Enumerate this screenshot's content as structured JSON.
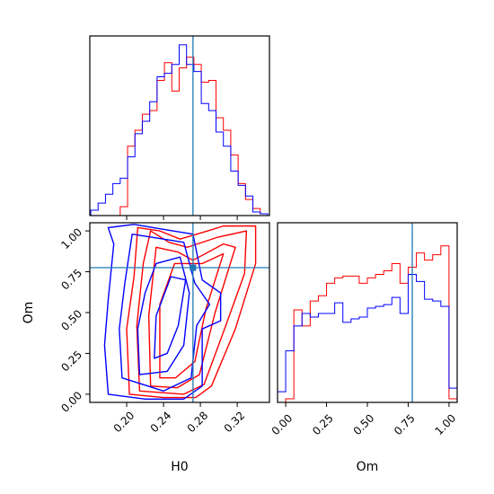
{
  "colors": {
    "series_a": "#ff0000",
    "series_b": "#0000ff",
    "truth": "#1f77b4"
  },
  "chart_data": {
    "type": "corner",
    "parameters": [
      "H0",
      "Om"
    ],
    "truth": {
      "H0": 0.272,
      "Om": 0.775
    },
    "panels": [
      {
        "id": "hist-H0",
        "type": "histogram",
        "parameter": "H0",
        "xlim": [
          0.16,
          0.355
        ],
        "xticks": [
          0.2,
          0.24,
          0.28,
          0.32
        ],
        "tick_labels_shown": false,
        "bins": [
          0.161,
          0.169,
          0.177,
          0.185,
          0.193,
          0.201,
          0.209,
          0.217,
          0.225,
          0.233,
          0.241,
          0.249,
          0.257,
          0.265,
          0.273,
          0.281,
          0.289,
          0.297,
          0.305,
          0.313,
          0.321,
          0.329,
          0.337,
          0.345,
          0.353
        ],
        "series": [
          {
            "name": "",
            "color_key": "series_a",
            "counts": [
              0,
              0,
              0,
              0,
              0.05,
              0.39,
              0.48,
              0.57,
              0.59,
              0.76,
              0.86,
              0.7,
              0.83,
              0.89,
              0.85,
              0.75,
              0.76,
              0.55,
              0.48,
              0.34,
              0.18,
              0.09,
              0.04,
              0.01
            ]
          },
          {
            "name": "",
            "color_key": "series_b",
            "counts": [
              0.03,
              0.07,
              0.12,
              0.18,
              0.21,
              0.33,
              0.46,
              0.53,
              0.64,
              0.78,
              0.8,
              0.85,
              0.96,
              0.85,
              0.81,
              0.63,
              0.59,
              0.47,
              0.39,
              0.25,
              0.17,
              0.11,
              0.02,
              0.01
            ]
          }
        ]
      },
      {
        "id": "hist-Om",
        "type": "histogram",
        "parameter": "Om",
        "xlim": [
          -0.05,
          1.05
        ],
        "xticks": [
          0.0,
          0.25,
          0.5,
          0.75,
          1.0
        ],
        "xtick_labels": [
          "0.00",
          "0.25",
          "0.50",
          "0.75",
          "1.00"
        ],
        "xlabel": "Om",
        "bins": [
          -0.05,
          0.0,
          0.05,
          0.1,
          0.15,
          0.2,
          0.25,
          0.3,
          0.35,
          0.4,
          0.45,
          0.5,
          0.55,
          0.6,
          0.65,
          0.7,
          0.75,
          0.8,
          0.85,
          0.9,
          0.95,
          1.0,
          1.05
        ],
        "series": [
          {
            "name": "",
            "color_key": "series_a",
            "counts": [
              0,
              0.02,
              0.52,
              0.43,
              0.57,
              0.6,
              0.67,
              0.7,
              0.71,
              0.71,
              0.67,
              0.7,
              0.72,
              0.74,
              0.78,
              0.67,
              0.76,
              0.84,
              0.8,
              0.83,
              0.88,
              0.02
            ]
          },
          {
            "name": "",
            "color_key": "series_b",
            "counts": [
              0.06,
              0.29,
              0.43,
              0.5,
              0.48,
              0.5,
              0.5,
              0.56,
              0.45,
              0.47,
              0.48,
              0.53,
              0.54,
              0.55,
              0.59,
              0.5,
              0.72,
              0.68,
              0.58,
              0.57,
              0.54,
              0.08
            ]
          }
        ]
      },
      {
        "id": "contour-H0-Om",
        "type": "contour",
        "x_parameter": "H0",
        "y_parameter": "Om",
        "xlim": [
          0.16,
          0.355
        ],
        "ylim": [
          -0.05,
          1.05
        ],
        "xticks": [
          0.2,
          0.24,
          0.28,
          0.32
        ],
        "xtick_labels": [
          "0.20",
          "0.24",
          "0.28",
          "0.32"
        ],
        "yticks": [
          0.0,
          0.25,
          0.5,
          0.75,
          1.0
        ],
        "ytick_labels": [
          "0.00",
          "0.25",
          "0.50",
          "0.75",
          "1.00"
        ],
        "xlabel": "H0",
        "ylabel": "Om",
        "series": [
          {
            "name": "",
            "color_key": "series_a",
            "contours": [
              [
                [
                  0.203,
                  0.0
                ],
                [
                  0.2,
                  0.4
                ],
                [
                  0.208,
                  0.72
                ],
                [
                  0.212,
                  1.02
                ],
                [
                  0.236,
                  1.0
                ],
                [
                  0.258,
                  0.95
                ],
                [
                  0.288,
                  1.0
                ],
                [
                  0.305,
                  1.03
                ],
                [
                  0.34,
                  1.03
                ],
                [
                  0.34,
                  0.8
                ],
                [
                  0.318,
                  0.4
                ],
                [
                  0.292,
                  0.05
                ],
                [
                  0.275,
                  -0.02
                ],
                [
                  0.24,
                  -0.02
                ],
                [
                  0.203,
                  0.0
                ]
              ],
              [
                [
                  0.214,
                  0.02
                ],
                [
                  0.211,
                  0.42
                ],
                [
                  0.218,
                  0.8
                ],
                [
                  0.226,
                  1.0
                ],
                [
                  0.246,
                  0.93
                ],
                [
                  0.266,
                  0.9
                ],
                [
                  0.298,
                  0.96
                ],
                [
                  0.33,
                  1.0
                ],
                [
                  0.328,
                  0.74
                ],
                [
                  0.305,
                  0.38
                ],
                [
                  0.284,
                  0.06
                ],
                [
                  0.262,
                  0.0
                ],
                [
                  0.214,
                  0.02
                ]
              ],
              [
                [
                  0.226,
                  0.05
                ],
                [
                  0.224,
                  0.48
                ],
                [
                  0.232,
                  0.9
                ],
                [
                  0.256,
                  0.87
                ],
                [
                  0.272,
                  0.82
                ],
                [
                  0.305,
                  0.92
                ],
                [
                  0.318,
                  0.9
                ],
                [
                  0.296,
                  0.5
                ],
                [
                  0.279,
                  0.12
                ],
                [
                  0.255,
                  0.04
                ],
                [
                  0.226,
                  0.05
                ]
              ],
              [
                [
                  0.236,
                  0.1
                ],
                [
                  0.236,
                  0.55
                ],
                [
                  0.252,
                  0.8
                ],
                [
                  0.282,
                  0.8
                ],
                [
                  0.305,
                  0.86
                ],
                [
                  0.286,
                  0.52
                ],
                [
                  0.274,
                  0.2
                ],
                [
                  0.253,
                  0.1
                ],
                [
                  0.236,
                  0.1
                ]
              ]
            ]
          },
          {
            "name": "",
            "color_key": "series_b",
            "contours": [
              [
                [
                  0.18,
                  0.0
                ],
                [
                  0.176,
                  0.3
                ],
                [
                  0.18,
                  0.58
                ],
                [
                  0.186,
                  0.92
                ],
                [
                  0.18,
                  1.02
                ],
                [
                  0.208,
                  1.04
                ],
                [
                  0.25,
                  1.0
                ],
                [
                  0.272,
                  0.98
                ],
                [
                  0.282,
                  0.7
                ],
                [
                  0.302,
                  0.62
                ],
                [
                  0.302,
                  0.45
                ],
                [
                  0.282,
                  0.4
                ],
                [
                  0.282,
                  0.05
                ],
                [
                  0.262,
                  -0.03
                ],
                [
                  0.22,
                  -0.03
                ],
                [
                  0.18,
                  0.0
                ]
              ],
              [
                [
                  0.195,
                  0.1
                ],
                [
                  0.192,
                  0.4
                ],
                [
                  0.198,
                  0.68
                ],
                [
                  0.206,
                  0.98
                ],
                [
                  0.24,
                  0.95
                ],
                [
                  0.262,
                  0.93
                ],
                [
                  0.274,
                  0.68
                ],
                [
                  0.29,
                  0.55
                ],
                [
                  0.276,
                  0.42
                ],
                [
                  0.27,
                  0.1
                ],
                [
                  0.24,
                  0.02
                ],
                [
                  0.195,
                  0.1
                ]
              ],
              [
                [
                  0.214,
                  0.12
                ],
                [
                  0.212,
                  0.4
                ],
                [
                  0.22,
                  0.62
                ],
                [
                  0.232,
                  0.8
                ],
                [
                  0.258,
                  0.84
                ],
                [
                  0.268,
                  0.62
                ],
                [
                  0.262,
                  0.3
                ],
                [
                  0.244,
                  0.14
                ],
                [
                  0.214,
                  0.12
                ]
              ],
              [
                [
                  0.23,
                  0.22
                ],
                [
                  0.232,
                  0.48
                ],
                [
                  0.248,
                  0.72
                ],
                [
                  0.264,
                  0.7
                ],
                [
                  0.256,
                  0.42
                ],
                [
                  0.244,
                  0.25
                ],
                [
                  0.23,
                  0.22
                ]
              ]
            ]
          }
        ]
      }
    ]
  }
}
